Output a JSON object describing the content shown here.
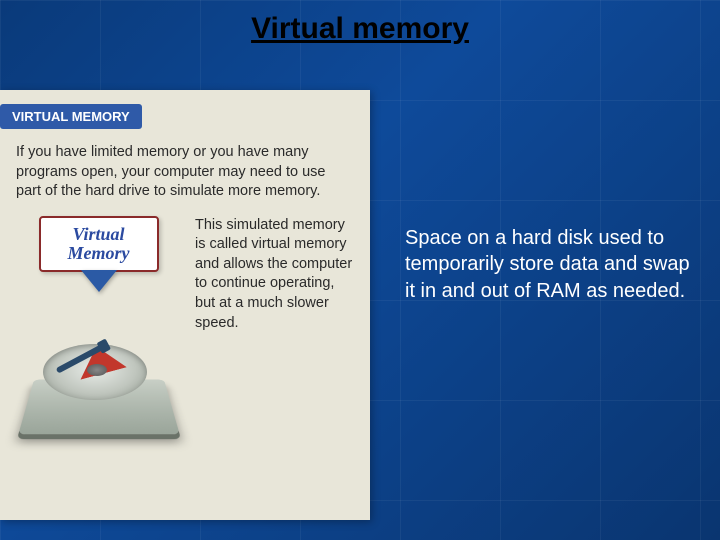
{
  "slide": {
    "title": "Virtual memory",
    "definition": "Space on a hard disk used to temporarily store data and swap it in and out of RAM as needed.",
    "background_gradient": [
      "#0a3a7a",
      "#0e4a9a",
      "#0a3570"
    ],
    "title_color": "#000000",
    "definition_color": "#ffffff",
    "definition_fontsize": 20,
    "title_fontsize": 30
  },
  "scan": {
    "badge_label": "VIRTUAL MEMORY",
    "badge_bg": "#2f5aa8",
    "badge_color": "#ffffff",
    "intro_text": "If you have limited memory or you have many programs open, your computer may need to use part of the hard drive to simulate more memory.",
    "sign_line1": "Virtual",
    "sign_line2": "Memory",
    "sign_text_color": "#2b4aa0",
    "sign_border_color": "#8a2a2a",
    "arrow_color": "#2b5aa5",
    "caption_text": "This simulated memory is called virtual memory and allows the computer to continue operating, but at a much slower speed.",
    "paper_bg": "#e8e6d9",
    "text_color": "#2a2a2a",
    "hdd_colors": {
      "base": "#9aa59a",
      "platter": "#c0c6be",
      "slice": "#c2372c",
      "arm": "#2a4a6a"
    }
  }
}
